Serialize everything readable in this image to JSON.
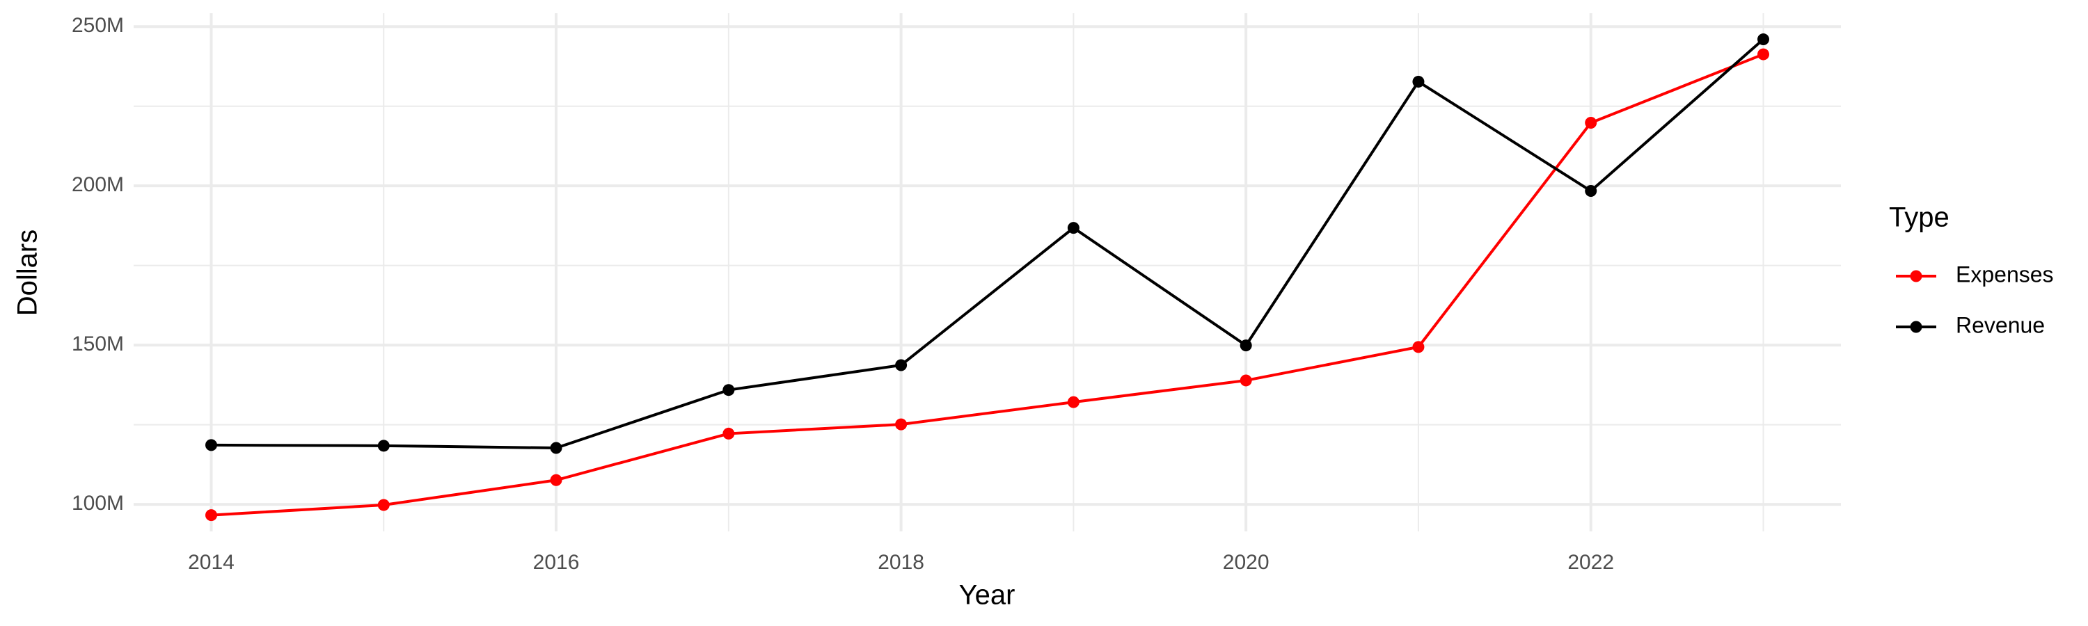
{
  "chart_data": {
    "type": "line",
    "x_label": "Year",
    "y_label": "Dollars",
    "legend_title": "Type",
    "x": [
      2014,
      2015,
      2016,
      2017,
      2018,
      2019,
      2020,
      2021,
      2022,
      2023
    ],
    "series": [
      {
        "name": "Expenses",
        "color": "#ff0000",
        "values": [
          96600000,
          99800000,
          107600000,
          122200000,
          125100000,
          132100000,
          138900000,
          149400000,
          219800000,
          241300000
        ]
      },
      {
        "name": "Revenue",
        "color": "#000000",
        "values": [
          118600000,
          118400000,
          117700000,
          135900000,
          143700000,
          186800000,
          149900000,
          232700000,
          198400000,
          246000000
        ]
      }
    ],
    "xlim": [
      2013.55,
      2023.45
    ],
    "xticks": [
      2014,
      2016,
      2018,
      2020,
      2022
    ],
    "ylim": [
      91500000,
      254200000
    ],
    "yticks": [
      {
        "value": 100000000,
        "label": "100M"
      },
      {
        "value": 150000000,
        "label": "150M"
      },
      {
        "value": 200000000,
        "label": "200M"
      },
      {
        "value": 250000000,
        "label": "250M"
      }
    ],
    "grid": true,
    "legend": "right"
  }
}
